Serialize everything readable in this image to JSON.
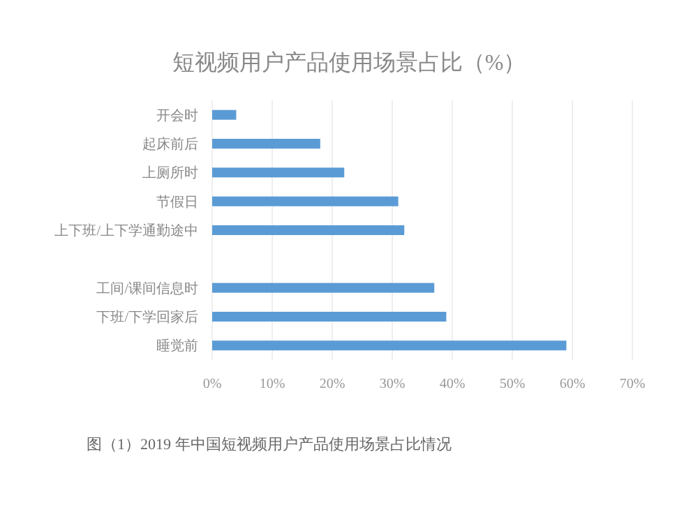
{
  "chart_data": {
    "type": "bar",
    "orientation": "horizontal",
    "title": "短视频用户产品使用场景占比（%）",
    "categories": [
      "开会时",
      "起床前后",
      "上厕所时",
      "节假日",
      "上下班/上下学通勤途中",
      null,
      "工间/课间信息时",
      "下班/下学回家后",
      "睡觉前"
    ],
    "values": [
      4,
      18,
      22,
      31,
      32,
      null,
      37,
      39,
      59
    ],
    "color": "#5b9bd5",
    "xlim": [
      0,
      70
    ],
    "xticks": [
      {
        "value": 0,
        "label": "0%"
      },
      {
        "value": 10,
        "label": "10%"
      },
      {
        "value": 20,
        "label": "20%"
      },
      {
        "value": 30,
        "label": "30%"
      },
      {
        "value": 40,
        "label": "40%"
      },
      {
        "value": 50,
        "label": "50%"
      },
      {
        "value": 60,
        "label": "60%"
      },
      {
        "value": 70,
        "label": "70%"
      }
    ],
    "grid": "x",
    "annotations": [
      "图（1）2019 年中国短视频用户产品使用场景占比情况"
    ]
  }
}
